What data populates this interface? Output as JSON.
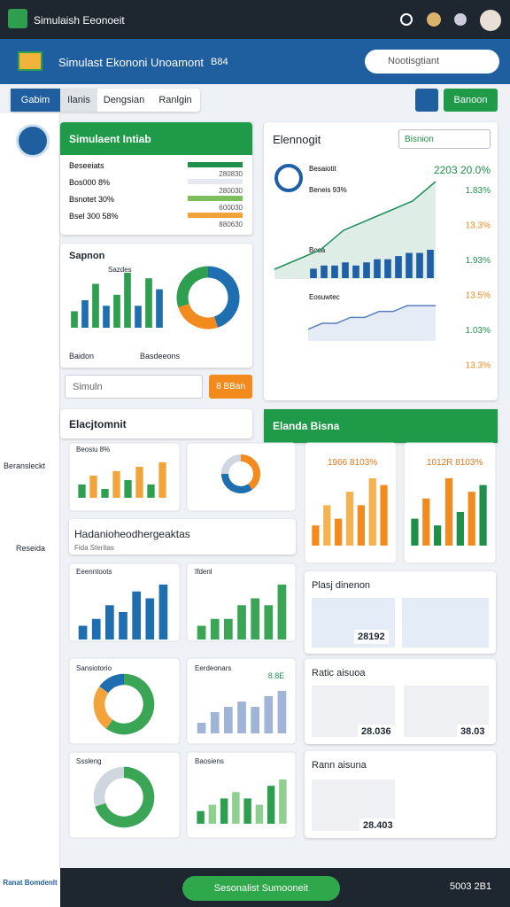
{
  "topbar": {
    "title": "Simulaish Eeonoeit"
  },
  "header": {
    "title": "Simulast Ekononi Unoamont",
    "code": "B84",
    "search": "Nootisgtiant"
  },
  "tabs": [
    "Gabim",
    "Ilanis",
    "Dengsian",
    "Ranlgin"
  ],
  "actions": {
    "primary": "Banoon"
  },
  "sidebar": [
    "Beransleckt",
    "Reseida"
  ],
  "simulation": {
    "title": "Simulaent Intiab",
    "rows": [
      [
        "Beseeiats",
        "280830"
      ],
      [
        "Bos000 8%",
        "280030"
      ],
      [
        "Bsnotet 30%",
        "600030"
      ],
      [
        "Bsel 300 58%",
        "880630"
      ]
    ]
  },
  "sapnon": {
    "title": "Sapnon",
    "label": "Sazdes",
    "footer": [
      "Baidon",
      "Basdeeons"
    ]
  },
  "input": {
    "placeholder": "Simuln",
    "button": "8 BBan"
  },
  "elac": {
    "title": "Elacjtomnit"
  },
  "eleno": {
    "title": "Elennogit",
    "select": "Bisnion",
    "kpi": "2203 20.0%",
    "notes": [
      "Besaiotit",
      "Beneis 93%",
      "Bosa",
      "Eosuwtec"
    ],
    "percents": [
      "1.83%",
      "13.3%",
      "1.93%",
      "13.5%",
      "1.03%",
      "13.3%"
    ]
  },
  "elanda": {
    "title": "Elanda Bisna"
  },
  "hada": {
    "title": "Hadanioheodhergeaktas",
    "subtitle": "Fida Steritas"
  },
  "plasj": {
    "title": "Plasj dinenon",
    "value": "28192"
  },
  "ratic": {
    "title": "Ratic aisuoa",
    "values": [
      "28.036",
      "38.03"
    ]
  },
  "rann": {
    "title": "Rann aisuna",
    "value": "28.403"
  },
  "bottom": {
    "left": "Ranat Bomdenlt",
    "button": "Sesonalist Sumooneit",
    "right": "5003 2B1"
  },
  "charts": [
    {
      "type": "bar",
      "values": [
        3,
        5,
        8,
        4,
        6,
        10,
        4,
        9,
        7
      ],
      "colors": [
        "#2e9e4f",
        "#1f6fb0",
        "#2e9e4f",
        "#1f6fb0",
        "#2e9e4f",
        "#2e9e4f",
        "#1f6fb0",
        "#2e9e4f",
        "#1f6fb0"
      ]
    },
    {
      "type": "pie",
      "values": [
        45,
        25,
        30
      ],
      "colors": [
        "#1f6fb0",
        "#f28a1e",
        "#2e9e4f"
      ]
    },
    {
      "type": "line",
      "values": [
        1,
        2,
        3,
        5,
        6,
        7,
        8,
        10
      ],
      "color": "#1f8f5a"
    },
    {
      "type": "bar",
      "values": [
        3,
        4,
        4,
        5,
        4,
        5,
        6,
        6,
        7,
        8,
        8,
        9
      ],
      "colors": [
        "#1f5fa8"
      ]
    },
    {
      "type": "line",
      "values": [
        2,
        3,
        3,
        4,
        4,
        5,
        5,
        6,
        6,
        6
      ],
      "color": "#5a7fbf"
    },
    {
      "type": "bar",
      "title": "Beosiu 8%",
      "values": [
        3,
        5,
        2,
        6,
        4,
        7,
        3,
        8
      ],
      "colors": [
        "#2e9e4f",
        "#f2a33a"
      ]
    },
    {
      "type": "pie",
      "values": [
        40,
        35,
        25
      ],
      "colors": [
        "#f28a1e",
        "#1f6fb0",
        "#cfd6df"
      ]
    },
    {
      "type": "bar",
      "title": "Eeenntoots",
      "values": [
        2,
        3,
        5,
        4,
        7,
        6,
        8
      ],
      "colors": [
        "#1f6fb0"
      ]
    },
    {
      "type": "bar",
      "title": "Ifdenl",
      "values": [
        2,
        3,
        3,
        5,
        6,
        5,
        8
      ],
      "colors": [
        "#3aa655"
      ]
    },
    {
      "type": "pie",
      "title": "Sansiotorio",
      "values": [
        60,
        25,
        15
      ],
      "colors": [
        "#3aa655",
        "#f2a33a",
        "#1f6fb0"
      ]
    },
    {
      "type": "bar",
      "title": "Eerdeonars",
      "badge": "8.8E",
      "values": [
        2,
        4,
        5,
        6,
        5,
        7,
        8
      ],
      "colors": [
        "#9fb4d6"
      ]
    },
    {
      "type": "pie",
      "title": "Sssleng",
      "values": [
        70,
        30
      ],
      "colors": [
        "#3aa655",
        "#cfd6df"
      ]
    },
    {
      "type": "bar",
      "title": "Baosiens",
      "values": [
        2,
        3,
        4,
        5,
        4,
        3,
        6,
        7
      ],
      "colors": [
        "#2e9e4f",
        "#8fcf8f"
      ]
    },
    {
      "type": "bar",
      "title": "1966 8103%",
      "values": [
        3,
        6,
        4,
        8,
        6,
        10,
        9
      ],
      "colors": [
        "#f28a1e",
        "#f7b14f"
      ]
    },
    {
      "type": "bar",
      "title": "1012R 8103%",
      "values": [
        4,
        7,
        3,
        10,
        5,
        8,
        9
      ],
      "colors": [
        "#1f8f4a",
        "#f28a1e"
      ]
    }
  ]
}
